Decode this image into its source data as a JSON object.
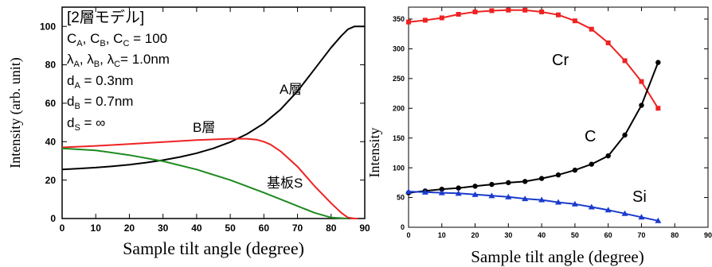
{
  "chart_data": [
    {
      "type": "line",
      "title": "",
      "xlabel": "Sample tilt angle (degree)",
      "ylabel": "Intensity (arb. unit)",
      "xlim": [
        0,
        90
      ],
      "ylim": [
        0,
        110
      ],
      "xticks": [
        "0",
        "10",
        "20",
        "30",
        "40",
        "50",
        "60",
        "70",
        "80",
        "90"
      ],
      "yticks": [
        "0",
        "20",
        "40",
        "60",
        "80",
        "100"
      ],
      "grid": false,
      "legend": "none",
      "annotation": {
        "heading": "[2層モデル]",
        "c_line": "Cₐ, Cʙ, Cᴄ = 100",
        "c_parts": [
          "C",
          "A",
          ", C",
          "B",
          ", C",
          "C",
          " = 100"
        ],
        "lambda_parts": [
          "λ",
          "A",
          ", λ",
          "B",
          ", λ",
          "C",
          "= 1.0nm"
        ],
        "dA_parts": [
          "d",
          "A",
          " = 0.3nm"
        ],
        "dB_parts": [
          "d",
          "B",
          " = 0.7nm"
        ],
        "dS_parts": [
          "d",
          "S",
          " = ∞"
        ]
      },
      "series": [
        {
          "name": "A層",
          "color": "#000000",
          "x": [
            0,
            5,
            10,
            15,
            20,
            25,
            30,
            35,
            40,
            45,
            50,
            55,
            60,
            65,
            70,
            75,
            80,
            83,
            85,
            87,
            88,
            90
          ],
          "y": [
            25.5,
            26,
            26.5,
            27.2,
            28,
            29.1,
            30.4,
            32,
            34,
            36.5,
            39.8,
            44,
            49.5,
            56.8,
            66.3,
            77.6,
            89,
            95,
            98.5,
            100,
            100,
            100
          ]
        },
        {
          "name": "B層",
          "color": "#ee2222",
          "x": [
            0,
            10,
            20,
            30,
            40,
            50,
            55,
            58,
            60,
            62,
            65,
            70,
            75,
            80,
            83,
            85,
            87,
            88
          ],
          "y": [
            37,
            37.8,
            38.8,
            39.8,
            40.8,
            41.5,
            41.5,
            41,
            40,
            38.5,
            35,
            27,
            17,
            8,
            3,
            0.5,
            0,
            0
          ]
        },
        {
          "name": "基板S",
          "color": "#1e8a1e",
          "x": [
            0,
            10,
            20,
            30,
            40,
            50,
            60,
            65,
            70,
            75,
            80,
            85
          ],
          "y": [
            36.5,
            35.5,
            33,
            29.8,
            25.5,
            20,
            13.5,
            10,
            6.5,
            3,
            0.5,
            0
          ]
        }
      ]
    },
    {
      "type": "line",
      "title": "",
      "xlabel": "Sample tilt angle (degree)",
      "ylabel": "Intensity",
      "xlim": [
        0,
        90
      ],
      "ylim": [
        0,
        370
      ],
      "xticks": [
        "0",
        "10",
        "20",
        "30",
        "40",
        "50",
        "60",
        "70",
        "80",
        "90"
      ],
      "yticks": [
        "0",
        "50",
        "100",
        "150",
        "200",
        "250",
        "300",
        "350"
      ],
      "grid": false,
      "legend": "none",
      "series": [
        {
          "name": "Cr",
          "color": "#ee2222",
          "marker": "square",
          "x": [
            0,
            5,
            10,
            15,
            20,
            25,
            30,
            35,
            40,
            45,
            50,
            55,
            60,
            65,
            70,
            75
          ],
          "y": [
            345,
            348,
            352,
            358,
            362,
            364,
            365,
            365,
            362,
            357,
            347,
            333,
            310,
            280,
            245,
            200
          ]
        },
        {
          "name": "C",
          "color": "#000000",
          "marker": "circle",
          "x": [
            0,
            5,
            10,
            15,
            20,
            25,
            30,
            35,
            40,
            45,
            50,
            55,
            60,
            65,
            70,
            75
          ],
          "y": [
            58,
            61,
            64,
            66,
            69,
            72,
            75,
            77,
            82,
            88,
            96,
            106,
            120,
            155,
            205,
            277
          ]
        },
        {
          "name": "Si",
          "color": "#1a3bcc",
          "marker": "triangle",
          "x": [
            0,
            5,
            10,
            15,
            20,
            25,
            30,
            35,
            40,
            45,
            50,
            55,
            60,
            65,
            70,
            75
          ],
          "y": [
            60,
            59,
            58,
            57,
            55,
            53,
            51,
            48,
            46,
            42,
            39,
            34,
            29,
            23,
            17,
            11
          ]
        }
      ]
    }
  ]
}
